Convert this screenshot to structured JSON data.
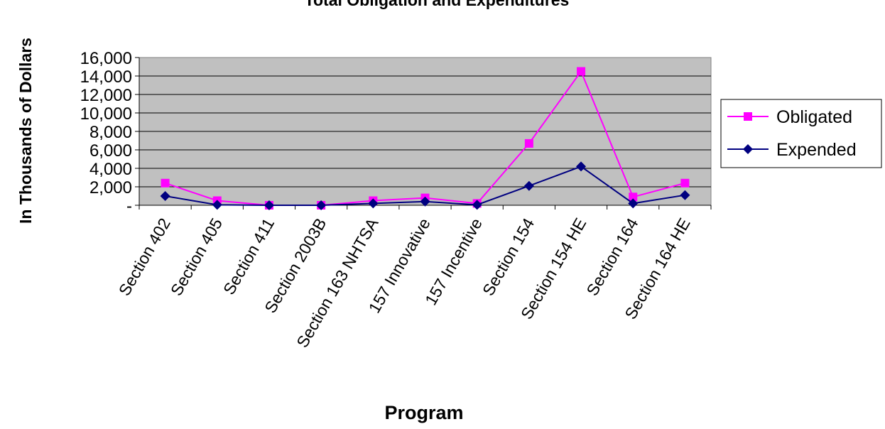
{
  "chart_data": {
    "type": "line",
    "title": "Total Obligation and Expenditures",
    "xlabel": "Program",
    "ylabel": "In Thousands of Dollars",
    "categories": [
      "Section 402",
      "Section 405",
      "Section 411",
      "Section 2003B",
      "Section 163 NHTSA",
      "157 Innovative",
      "157 Incentive",
      "Section 154",
      "Section 154 HE",
      "Section 164",
      "Section 164 HE"
    ],
    "ylim": [
      0,
      16000
    ],
    "yticks": [
      0,
      2000,
      4000,
      6000,
      8000,
      10000,
      12000,
      14000,
      16000
    ],
    "ytick_labels": [
      "-",
      "2,000",
      "4,000",
      "6,000",
      "8,000",
      "10,000",
      "12,000",
      "14,000",
      "16,000"
    ],
    "grid": true,
    "legend_position": "right",
    "plot_background": "#c0c0c0",
    "series": [
      {
        "name": "Obligated",
        "color": "#ff00ff",
        "marker": "square",
        "values": [
          2400,
          500,
          0,
          0,
          500,
          800,
          200,
          6700,
          14500,
          900,
          2400
        ]
      },
      {
        "name": "Expended",
        "color": "#000080",
        "marker": "diamond",
        "values": [
          1000,
          50,
          0,
          0,
          200,
          400,
          50,
          2100,
          4200,
          200,
          1100
        ]
      }
    ]
  }
}
